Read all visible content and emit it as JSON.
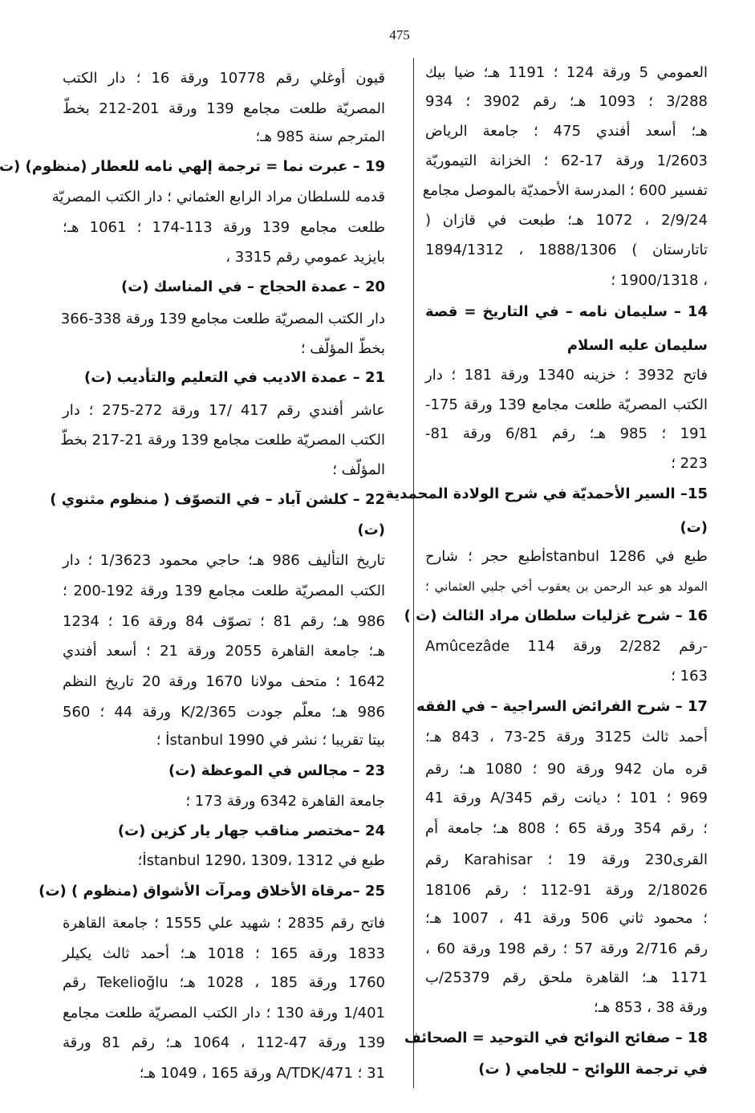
{
  "page_number": "475",
  "right_column": [
    "العمومي 5 ورقة 124 ؛ 1191 هـ؛ ضيا بيك",
    "3/288 ؛ 1093 هـ؛ رقم 3902 ؛ 934",
    "هـ؛ أسعد أفندي 475 ؛ جامعة الرياض",
    "1/2603 ورقة 17-62 ؛ الخزانة التيموريّة",
    "تفسير 600 ؛ المدرسة الأحمديّة بالموصل مجامع",
    "2/9/24 ، 1072 هـ؛ طبعت في قازان (",
    "تاتارستان ) 1888/1306 ، 1894/1312",
    "، 1900/1318 ؛",
    "14 – سليمان نامه – في التاريخ = قصة",
    "سليمان عليه السلام",
    "فاتح 3932 ؛ خزينه 1340 ورقة 181 ؛ دار",
    "الكتب المصريّة طلعت مجامع 139 ورقة 175-",
    "191 ؛ 985 هـ؛ رقم 6/81 ورقة 81-",
    "223 ؛",
    "15– السير الأحمديّة في شرح الولادة المحمدية",
    "(ت)",
    "طبع في İstanbul 1286طبع حجر ؛ شارح",
    "المولد هو عبد الرحمن بن يعقوب أخي جلبي العثماني ؛",
    "16 – شرح غزليات سلطان مراد الثالث (ت )",
    "Amûcezâde رقم 2/282 ورقة 114-",
    "163 ؛",
    "17 – شرح الفرائض السراجية – في الفقه",
    "أحمد ثالث 3125 ورقة 25-73 ، 843 هـ؛",
    "قره مان 942 ورقة 90 ؛ 1080 هـ؛ رقم",
    "969 ؛ 101 ؛ ديانت رقم 345/A ورقة 41",
    "؛ رقم 354 ورقة 65 ؛ 808 هـ؛ جامعة أم",
    "القرى230 ورقة 19 ؛ Karahisar رقم",
    "2/18026 ورقة 91-112 ؛ رقم 18106",
    "؛ محمود ثاني 506 ورقة 41 ، 1007 هـ؛",
    "رقم 2/716 ورقة 57 ؛ رقم 198 ورقة 60 ،",
    "1171 هـ؛ القاهرة ملحق رقم 25379/ب",
    "ورقة 38 ، 853 هـ؛",
    "18 – صفائح النوائح في التوحيد = الصحائف",
    "في ترجمة اللوائح – للجامي ( ت)"
  ],
  "left_column": [
    "قيون أوغلي رقم 10778 ورقة 16 ؛ دار الكتب",
    "المصريّة طلعت مجامع 139 ورقة 201-212 بخطّ",
    "المترجم سنة 985 هـ؛",
    "19 – عبرت نما = ترجمة إلهي نامه للعطار (منظوم) (ت)",
    "قدمه للسلطان مراد الرابع العثماني ؛ دار الكتب المصريّة",
    "طلعت مجامع 139 ورقة 113-174 ؛ 1061 هـ؛",
    "بايزيد عمومي رقم 3315 ،",
    "20 – عمدة الحجاج – في المناسك (ت)",
    "دار الكتب المصريّة طلعت مجامع 139 ورقة 338-366",
    "بخطّ المؤلّف ؛",
    "21 – عمدة الاديب في التعليم والتأديب (ت)",
    "عاشر أفندي رقم 417 /17 ورقة 272-275 ؛ دار",
    "الكتب المصريّة طلعت مجامع 139 ورقة 21-217 بخطّ",
    "المؤلّف ؛",
    "22 – كلشن آباد – في التصوّف ( منظوم مثنوي )",
    "(ت)",
    "تاريخ التأليف 986 هـ؛ حاجي محمود 1/3623 ؛ دار",
    "الكتب المصريّة طلعت مجامع 139 ورقة 192-200 ؛",
    "986 هـ؛ رقم 81 ؛ تصوّف 84 ورقة 16 ؛ 1234",
    "هـ؛ جامعة القاهرة 2055 ورقة 21 ؛ أسعد أفندي",
    "1642 ؛ متحف مولانا 1670 ورقة 20 تاريخ النظم",
    "986 هـ؛ معلّم جودت 2/365/K ورقة 44 ؛ 560",
    "بيتا تقريبا ؛ نشر في İstanbul 1990 ؛",
    "23 – مجالس في الموعظة (ت)",
    "جامعة القاهرة 6342 ورقة 173 ؛",
    "24 –مختصر مناقب جهار يار كزين (ت)",
    "طبع في İstanbul 1290، 1309، 1312؛",
    "25 –مرقاة الأخلاق ومرآت الأشواق (منظوم ) (ت)",
    "فاتح رقم 2835 ؛ شهيد علي 1555 ؛ جامعة القاهرة",
    "1833 ورقة 165 ؛ 1018 هـ؛ أحمد ثالث يكيلر",
    "1760 ورقة 185 ، 1028 هـ؛ Tekelioğlu رقم",
    "1/401 ورقة 130 ؛ دار الكتب المصريّة طلعت مجامع",
    "139 ورقة 47-112 ، 1064 هـ؛ رقم 81 ورقة",
    "31 ؛ 471/A/TDK ورقة 165 ، 1049 هـ؛"
  ]
}
